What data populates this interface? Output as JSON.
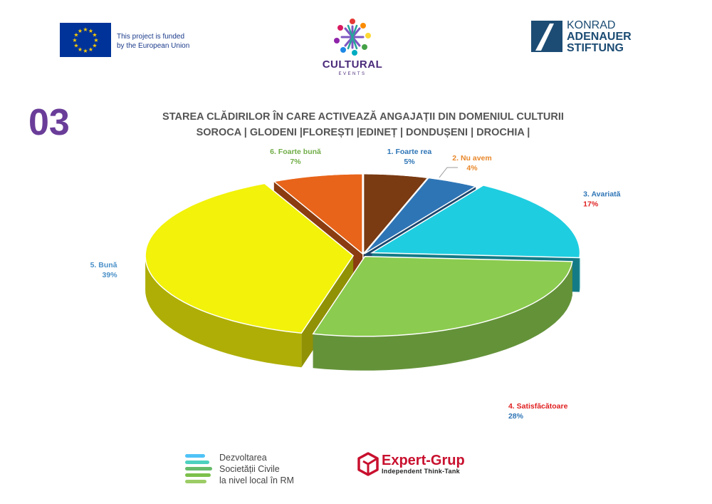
{
  "header": {
    "eu_text_line1": "This project is funded",
    "eu_text_line2": "by the European Union",
    "cultural_title": "CULTURAL",
    "cultural_subtitle": "EVENTS",
    "kas_line1": "KONRAD",
    "kas_line2": "ADENAUER",
    "kas_line3": "STIFTUNG"
  },
  "section_number": "03",
  "footer": {
    "dsc_line1": "Dezvoltarea",
    "dsc_line2": "Societății Civile",
    "dsc_line3": "la nivel local în RM",
    "expert_name": "Expert-Grup",
    "expert_sub": "Independent Think-Tank"
  },
  "colors": {
    "accent_purple": "#6a3d99",
    "eu_blue": "#003399",
    "kas_blue": "#1c4c74",
    "expert_red": "#c8102e"
  },
  "chart_data": {
    "type": "pie",
    "title_line1": "STAREA CLĂDIRILOR ÎN CARE ACTIVEAZĂ ANGAJAȚII DIN DOMENIUL CULTURII",
    "title_line2": "SOROCA | GLODENI |FLOREȘTI |EDINEȚ | DONDUȘENI | DROCHIA |",
    "categories": [
      "1. Foarte rea",
      "2. Nu avem",
      "3. Avariată",
      "4. Satisfăcătoare",
      "5. Bună",
      "6. Foarte bună"
    ],
    "values": [
      5,
      4,
      17,
      28,
      39,
      7
    ],
    "value_labels": [
      "5%",
      "4%",
      "17%",
      "28%",
      "39%",
      "7%"
    ],
    "slice_colors": [
      "#7a3a12",
      "#2e75b6",
      "#1fcde0",
      "#8bcb4f",
      "#f2f20a",
      "#e8641a"
    ],
    "label_colors": [
      "#2e75b6",
      "#e8872a",
      "#2e75b6",
      "#e02020",
      "#4a90c8",
      "#70ad47"
    ],
    "value_colors": [
      "#2e75b6",
      "#e8872a",
      "#e02020",
      "#2e75b6",
      "#4a90c8",
      "#70ad47"
    ],
    "exploded": [
      false,
      false,
      true,
      false,
      true,
      false
    ]
  }
}
